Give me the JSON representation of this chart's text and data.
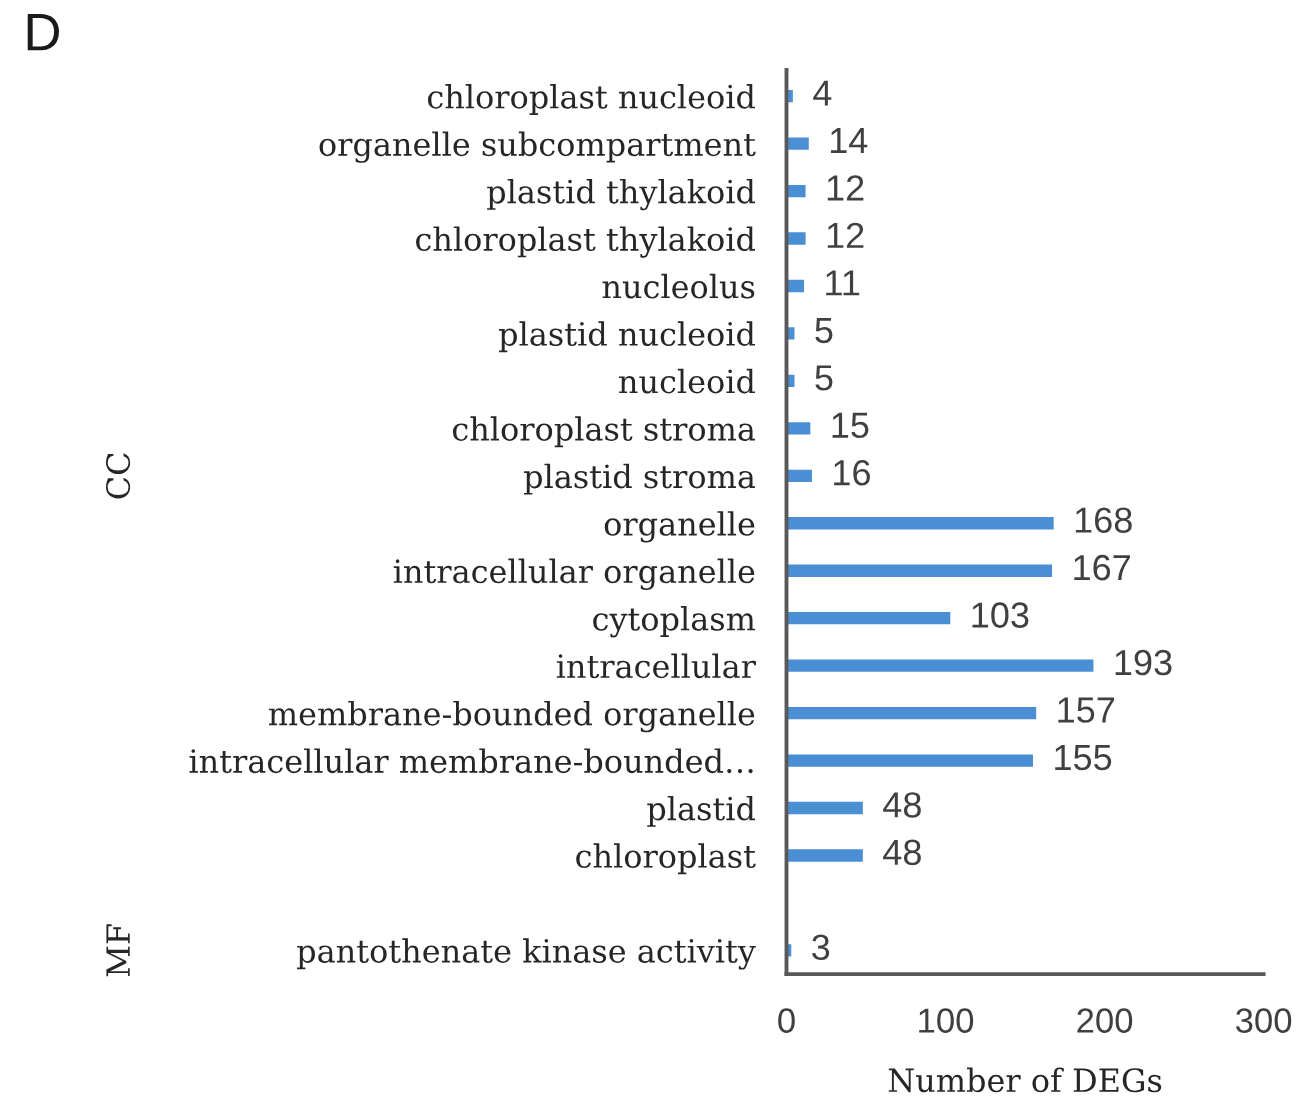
{
  "chart_data": {
    "type": "bar",
    "orientation": "horizontal",
    "title": "D",
    "xlabel": "Number of DEGs",
    "categories": [
      "chloroplast nucleoid",
      "organelle subcompartment",
      "plastid thylakoid",
      "chloroplast thylakoid",
      "nucleolus",
      "plastid nucleoid",
      "nucleoid",
      "chloroplast stroma",
      "plastid stroma",
      "organelle",
      "intracellular organelle",
      "cytoplasm",
      "intracellular",
      "membrane-bounded organelle",
      "intracellular membrane-bounded…",
      "plastid",
      "chloroplast",
      null,
      "pantothenate kinase activity"
    ],
    "values": [
      4,
      14,
      12,
      12,
      11,
      5,
      5,
      15,
      16,
      168,
      167,
      103,
      193,
      157,
      155,
      48,
      48,
      null,
      3
    ],
    "color": "#4a8fd4",
    "xlim": [
      0,
      300
    ],
    "xticks": [
      0,
      100,
      200,
      300
    ],
    "data_labels": true,
    "annotations": [
      "CC",
      "MF"
    ]
  }
}
